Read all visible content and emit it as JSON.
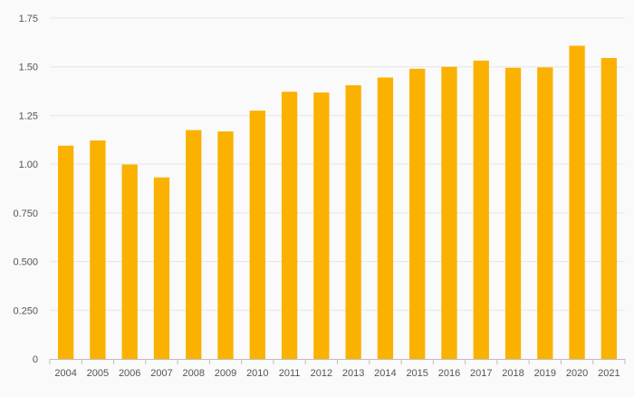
{
  "chart_data": {
    "type": "bar",
    "title": "",
    "xlabel": "",
    "ylabel": "",
    "categories": [
      "2004",
      "2005",
      "2006",
      "2007",
      "2008",
      "2009",
      "2010",
      "2011",
      "2012",
      "2013",
      "2014",
      "2015",
      "2016",
      "2017",
      "2018",
      "2019",
      "2020",
      "2021"
    ],
    "series": [
      {
        "values": [
          1.095,
          1.122,
          0.998,
          0.932,
          1.175,
          1.168,
          1.275,
          1.372,
          1.368,
          1.405,
          1.445,
          1.49,
          1.5,
          1.532,
          1.495,
          1.497,
          1.608,
          1.545
        ]
      }
    ],
    "ylim": [
      0,
      1.75
    ],
    "yticks": [
      0,
      0.25,
      0.5,
      0.75,
      1.0,
      1.25,
      1.5,
      1.75
    ],
    "ytick_labels": [
      "0",
      "0.250",
      "0.500",
      "0.750",
      "1.00",
      "1.25",
      "1.50",
      "1.75"
    ],
    "bar_color": "#fbb100",
    "grid": true,
    "legend": "none"
  }
}
